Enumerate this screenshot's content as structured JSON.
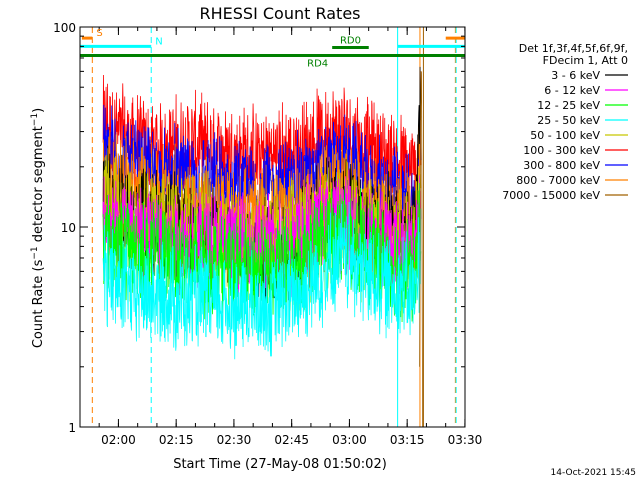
{
  "chart_data": {
    "type": "line",
    "title": "RHESSI Count Rates",
    "xlabel": "Start Time (27-May-08 01:50:02)",
    "ylabel": "Count Rate (s⁻¹ detector segment⁻¹)",
    "ylabel_parts": {
      "prefix": "Count Rate (s",
      "sup1": "−1",
      "middle": " detector segment",
      "sup2": "−1",
      "suffix": ")"
    },
    "x_unit": "minutes since 01:50:02",
    "xlim": [
      0,
      100
    ],
    "ylim": [
      1,
      100
    ],
    "yscale": "log",
    "x_ticks": [
      {
        "t": 9.98,
        "label": "02:00"
      },
      {
        "t": 24.98,
        "label": "02:15"
      },
      {
        "t": 39.98,
        "label": "02:30"
      },
      {
        "t": 54.98,
        "label": "02:45"
      },
      {
        "t": 69.98,
        "label": "03:00"
      },
      {
        "t": 84.98,
        "label": "03:15"
      },
      {
        "t": 99.98,
        "label": "03:30"
      }
    ],
    "y_ticks": [
      {
        "v": 100,
        "label": "100"
      },
      {
        "v": 10,
        "label": "10"
      },
      {
        "v": 1,
        "label": "1"
      }
    ],
    "legend": {
      "placement": "right",
      "header": [
        "Det 1f,3f,4f,5f,6f,9f,",
        "FDecim 1, Att 0"
      ],
      "entries": [
        {
          "label": "3 - 6 keV",
          "color": "#000000"
        },
        {
          "label": "6 - 12 keV",
          "color": "#ff00ff"
        },
        {
          "label": "12 - 25 keV",
          "color": "#00ff00"
        },
        {
          "label": "25 - 50 keV",
          "color": "#00ffff"
        },
        {
          "label": "50 - 100 keV",
          "color": "#c8c800"
        },
        {
          "label": "100 - 300 keV",
          "color": "#ff0000"
        },
        {
          "label": "300 - 800 keV",
          "color": "#0000ff"
        },
        {
          "label": "800 - 7000 keV",
          "color": "#ff8000"
        },
        {
          "label": "7000 - 15000 keV",
          "color": "#a06000"
        }
      ]
    },
    "series": [
      {
        "name": "100 - 300 keV",
        "color": "#ff0000",
        "t": [
          6,
          10,
          16,
          22,
          28,
          34,
          40,
          46,
          50,
          54,
          58,
          62,
          65,
          68,
          71,
          73,
          75,
          78,
          82,
          85,
          87,
          88.5
        ],
        "values": [
          33,
          29,
          25,
          24,
          26,
          24,
          23,
          22,
          23,
          23,
          24,
          27,
          29,
          30,
          29,
          25,
          24,
          23,
          21,
          19,
          18,
          28
        ]
      },
      {
        "name": "300 - 800 keV",
        "color": "#0000ff",
        "t": [
          6,
          10,
          16,
          22,
          28,
          34,
          40,
          46,
          50,
          54,
          58,
          62,
          65,
          68,
          71,
          73,
          75,
          78,
          82,
          85,
          87,
          88.5
        ],
        "values": [
          25,
          21,
          18,
          17,
          17,
          16,
          15,
          14.5,
          15,
          15.5,
          16.5,
          18,
          19,
          20,
          19,
          17,
          16,
          15,
          14,
          13,
          12,
          30
        ]
      },
      {
        "name": "800 - 7000 keV",
        "color": "#ff8000",
        "t": [
          6,
          10,
          16,
          22,
          28,
          34,
          40,
          46,
          50,
          54,
          58,
          62,
          65,
          68,
          71,
          73,
          75,
          78,
          82,
          85,
          87,
          88.5
        ],
        "values": [
          19,
          16.5,
          15,
          14,
          13,
          12.5,
          11.5,
          11,
          11,
          11.5,
          12.5,
          14,
          15,
          15.5,
          14.5,
          13,
          12.5,
          12,
          11.5,
          11,
          10.5,
          40
        ]
      },
      {
        "name": "3 - 6 keV",
        "color": "#000000",
        "t": [
          6,
          10,
          16,
          22,
          28,
          34,
          40,
          46,
          50,
          54,
          58,
          62,
          65,
          68,
          71,
          73,
          75,
          78,
          82,
          85,
          87,
          88.5
        ],
        "values": [
          14,
          12,
          11,
          10.5,
          9.5,
          8.5,
          8,
          7.5,
          7.5,
          8,
          9,
          11,
          12.5,
          13,
          12,
          11,
          10.5,
          10,
          9.5,
          9,
          8.5,
          52
        ]
      },
      {
        "name": "50 - 100 keV",
        "color": "#c8c800",
        "t": [
          6,
          10,
          16,
          22,
          28,
          34,
          40,
          46,
          50,
          54,
          58,
          62,
          65,
          68,
          71,
          73,
          75,
          78,
          82,
          85,
          87,
          88.5
        ],
        "values": [
          13,
          11.5,
          11,
          10.5,
          10,
          9.5,
          9,
          8.5,
          8.5,
          9,
          9.5,
          10.5,
          11.5,
          12,
          11.5,
          10.5,
          10,
          9.5,
          9,
          8.5,
          8,
          20
        ]
      },
      {
        "name": "6 - 12 keV",
        "color": "#ff00ff",
        "t": [
          6,
          10,
          16,
          22,
          28,
          34,
          40,
          46,
          50,
          54,
          58,
          62,
          65,
          68,
          71,
          73,
          75,
          78,
          82,
          85,
          87,
          88.5
        ],
        "values": [
          11,
          10,
          9.5,
          9,
          8.5,
          8.5,
          8,
          8,
          8,
          8.5,
          9,
          10,
          10.5,
          11,
          10.5,
          9.5,
          9,
          8.5,
          8,
          7.5,
          7.5,
          14
        ]
      },
      {
        "name": "12 - 25 keV",
        "color": "#00ff00",
        "t": [
          6,
          10,
          16,
          22,
          28,
          34,
          40,
          46,
          50,
          54,
          58,
          62,
          65,
          68,
          71,
          73,
          75,
          78,
          82,
          85,
          87,
          88.5
        ],
        "values": [
          9.5,
          8,
          7.5,
          7,
          6.8,
          6.5,
          6.2,
          6,
          6,
          6.3,
          7,
          8,
          9,
          9.5,
          9,
          8,
          7.5,
          7,
          6.5,
          6,
          5.5,
          12
        ]
      },
      {
        "name": "25 - 50 keV",
        "color": "#00ffff",
        "t": [
          6,
          10,
          16,
          22,
          28,
          34,
          40,
          46,
          50,
          54,
          58,
          62,
          65,
          68,
          71,
          73,
          75,
          78,
          82,
          85,
          87,
          88.5
        ],
        "values": [
          6.2,
          5,
          4.6,
          4.4,
          4.3,
          4.2,
          4,
          4,
          4.1,
          4.3,
          4.8,
          5.6,
          6.5,
          7.1,
          6.8,
          6,
          5.6,
          5.3,
          5,
          4.8,
          4.5,
          8
        ]
      },
      {
        "name": "7000 - 15000 keV",
        "color": "#a06000",
        "t": [
          88.2,
          88.5,
          88.7,
          89,
          89.3
        ],
        "values": [
          2,
          40,
          60,
          1,
          1
        ]
      }
    ],
    "annotations": {
      "attenuator_bars": [
        {
          "label": "S",
          "color": "#ff8000",
          "t_start": 0.5,
          "t_end": 3.2,
          "level": 88
        },
        {
          "label": "N",
          "color": "#00ffff",
          "t_start": 0,
          "t_end": 18.5,
          "level": 80
        },
        {
          "label": "",
          "color": "#ff8000",
          "t_start": 95,
          "t_end": 100,
          "level": 88
        },
        {
          "label": "",
          "color": "#00ffff",
          "t_start": 82.5,
          "t_end": 100,
          "level": 80
        }
      ],
      "decimation_bars": [
        {
          "label": "RD4",
          "color": "#008000",
          "t_start": 0,
          "t_end": 100,
          "level": 72
        },
        {
          "label": "RD0",
          "color": "#008000",
          "t_start": 65.5,
          "t_end": 75,
          "level": 79
        }
      ],
      "vertical_lines": [
        {
          "t": 3.2,
          "color": "#ff8000",
          "style": "dashed"
        },
        {
          "t": 18.5,
          "color": "#00ffff",
          "style": "dashed"
        },
        {
          "t": 82.5,
          "color": "#00ffff",
          "style": "solid"
        },
        {
          "t": 88.3,
          "color": "#ff8000",
          "style": "solid"
        },
        {
          "t": 89.2,
          "color": "#a06000",
          "style": "solid"
        },
        {
          "t": 97.5,
          "color": "#ff8000",
          "style": "dashed"
        },
        {
          "t": 97.7,
          "color": "#00ffff",
          "style": "dashed"
        }
      ]
    },
    "footer": "14-Oct-2021 15:45"
  }
}
